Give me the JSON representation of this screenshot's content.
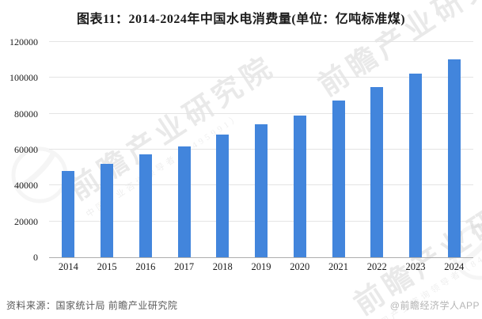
{
  "title": "图表11：2014-2024年中国水电消费量(单位：亿吨标准煤)",
  "chart_data": {
    "type": "bar",
    "title": "图表11：2014-2024年中国水电消费量(单位：亿吨标准煤)",
    "unit": "亿吨标准煤",
    "categories": [
      "2014",
      "2015",
      "2016",
      "2017",
      "2018",
      "2019",
      "2020",
      "2021",
      "2022",
      "2023",
      "2024"
    ],
    "values": [
      48200,
      51900,
      57500,
      62000,
      68500,
      74300,
      79000,
      87500,
      95000,
      102300,
      110400
    ],
    "xlabel": "",
    "ylabel": "",
    "ylim": [
      0,
      120000
    ],
    "yticks": [
      0,
      20000,
      40000,
      60000,
      80000,
      100000,
      120000
    ],
    "ytick_labels": [
      "0",
      "20000",
      "40000",
      "60000",
      "80000",
      "100000",
      "120000"
    ],
    "grid": true,
    "legend": false,
    "bar_color": "#4285DC"
  },
  "watermark": {
    "text": "前瞻产业研究院",
    "subtext": "中国产业咨询领导者（8495991）",
    "globe_icon": "qianzhan-globe-logo"
  },
  "footer": {
    "source": "资料来源：国家统计局 前瞻产业研究院",
    "credit": "@前瞻经济学人APP"
  }
}
